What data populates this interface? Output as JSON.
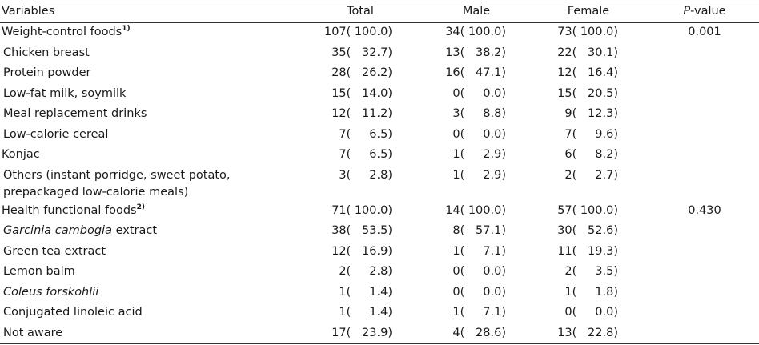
{
  "header": {
    "variables": "Variables",
    "total": "Total",
    "male": "Male",
    "female": "Female",
    "p_italic": "P",
    "p_rest": "-value"
  },
  "rows": [
    {
      "label": "Weight-control foods",
      "sup": "1)",
      "total": [
        "107",
        "100.0"
      ],
      "male": [
        "34",
        "100.0"
      ],
      "female": [
        "73",
        "100.0"
      ],
      "p": "0.001"
    },
    {
      "label": "Chicken breast",
      "total": [
        "35",
        "32.7"
      ],
      "male": [
        "13",
        "38.2"
      ],
      "female": [
        "22",
        "30.1"
      ]
    },
    {
      "label": "Protein powder",
      "total": [
        "28",
        "26.2"
      ],
      "male": [
        "16",
        "47.1"
      ],
      "female": [
        "12",
        "16.4"
      ]
    },
    {
      "label": "Low-fat milk, soymilk",
      "total": [
        "15",
        "14.0"
      ],
      "male": [
        "0",
        "0.0"
      ],
      "female": [
        "15",
        "20.5"
      ]
    },
    {
      "label": "Meal replacement drinks",
      "total": [
        "12",
        "11.2"
      ],
      "male": [
        "3",
        "8.8"
      ],
      "female": [
        "9",
        "12.3"
      ]
    },
    {
      "label": "Low-calorie cereal",
      "total": [
        "7",
        "6.5"
      ],
      "male": [
        "0",
        "0.0"
      ],
      "female": [
        "7",
        "9.6"
      ]
    },
    {
      "label": "Konjac",
      "total": [
        "7",
        "6.5"
      ],
      "male": [
        "1",
        "2.9"
      ],
      "female": [
        "6",
        "8.2"
      ]
    },
    {
      "label": "Others (instant porridge, sweet potato, prepackaged low-calorie meals)",
      "total": [
        "3",
        "2.8"
      ],
      "male": [
        "1",
        "2.9"
      ],
      "female": [
        "2",
        "2.7"
      ]
    },
    {
      "label": "Health functional foods",
      "sup": "2)",
      "total": [
        "71",
        "100.0"
      ],
      "male": [
        "14",
        "100.0"
      ],
      "female": [
        "57",
        "100.0"
      ],
      "p": "0.430"
    },
    {
      "label_italic": "Garcinia cambogia",
      "label": " extract",
      "total": [
        "38",
        "53.5"
      ],
      "male": [
        "8",
        "57.1"
      ],
      "female": [
        "30",
        "52.6"
      ]
    },
    {
      "label": "Green tea extract",
      "total": [
        "12",
        "16.9"
      ],
      "male": [
        "1",
        "7.1"
      ],
      "female": [
        "11",
        "19.3"
      ]
    },
    {
      "label": "Lemon balm",
      "total": [
        "2",
        "2.8"
      ],
      "male": [
        "0",
        "0.0"
      ],
      "female": [
        "2",
        "3.5"
      ]
    },
    {
      "label_italic": "Coleus forskohlii",
      "label": "",
      "total": [
        "1",
        "1.4"
      ],
      "male": [
        "0",
        "0.0"
      ],
      "female": [
        "1",
        "1.8"
      ]
    },
    {
      "label": "Conjugated linoleic acid",
      "total": [
        "1",
        "1.4"
      ],
      "male": [
        "1",
        "7.1"
      ],
      "female": [
        "0",
        "0.0"
      ]
    },
    {
      "label": "Not aware",
      "total": [
        "17",
        "23.9"
      ],
      "male": [
        "4",
        "28.6"
      ],
      "female": [
        "13",
        "22.8"
      ]
    }
  ]
}
